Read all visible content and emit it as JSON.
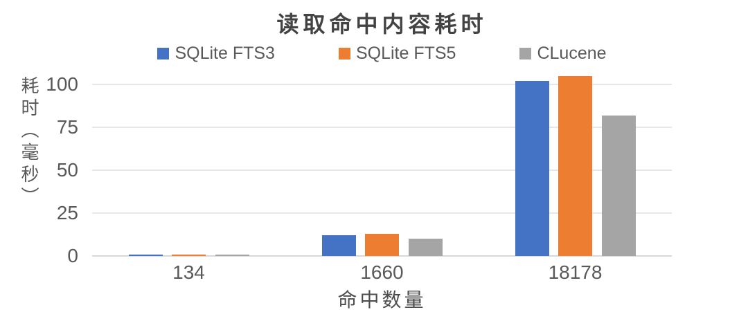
{
  "chart_data": {
    "type": "bar",
    "title": "读取命中内容耗时",
    "xlabel": "命中数量",
    "ylabel": "耗时（毫秒）",
    "categories": [
      "134",
      "1660",
      "18178"
    ],
    "series": [
      {
        "name": "SQLite FTS3",
        "color": "#4472C4",
        "values": [
          1,
          12,
          102
        ]
      },
      {
        "name": "SQLite FTS5",
        "color": "#ED7D31",
        "values": [
          1,
          13,
          105
        ]
      },
      {
        "name": "CLucene",
        "color": "#A5A5A5",
        "values": [
          1,
          10,
          82
        ]
      }
    ],
    "yticks": [
      0,
      25,
      50,
      75,
      100
    ],
    "ylim": [
      0,
      105
    ],
    "grid": true,
    "legend_position": "top",
    "background_color": "#ffffff",
    "gridline_color": "#e7e7e7",
    "text_color": "#595959",
    "title_color": "#434343"
  }
}
